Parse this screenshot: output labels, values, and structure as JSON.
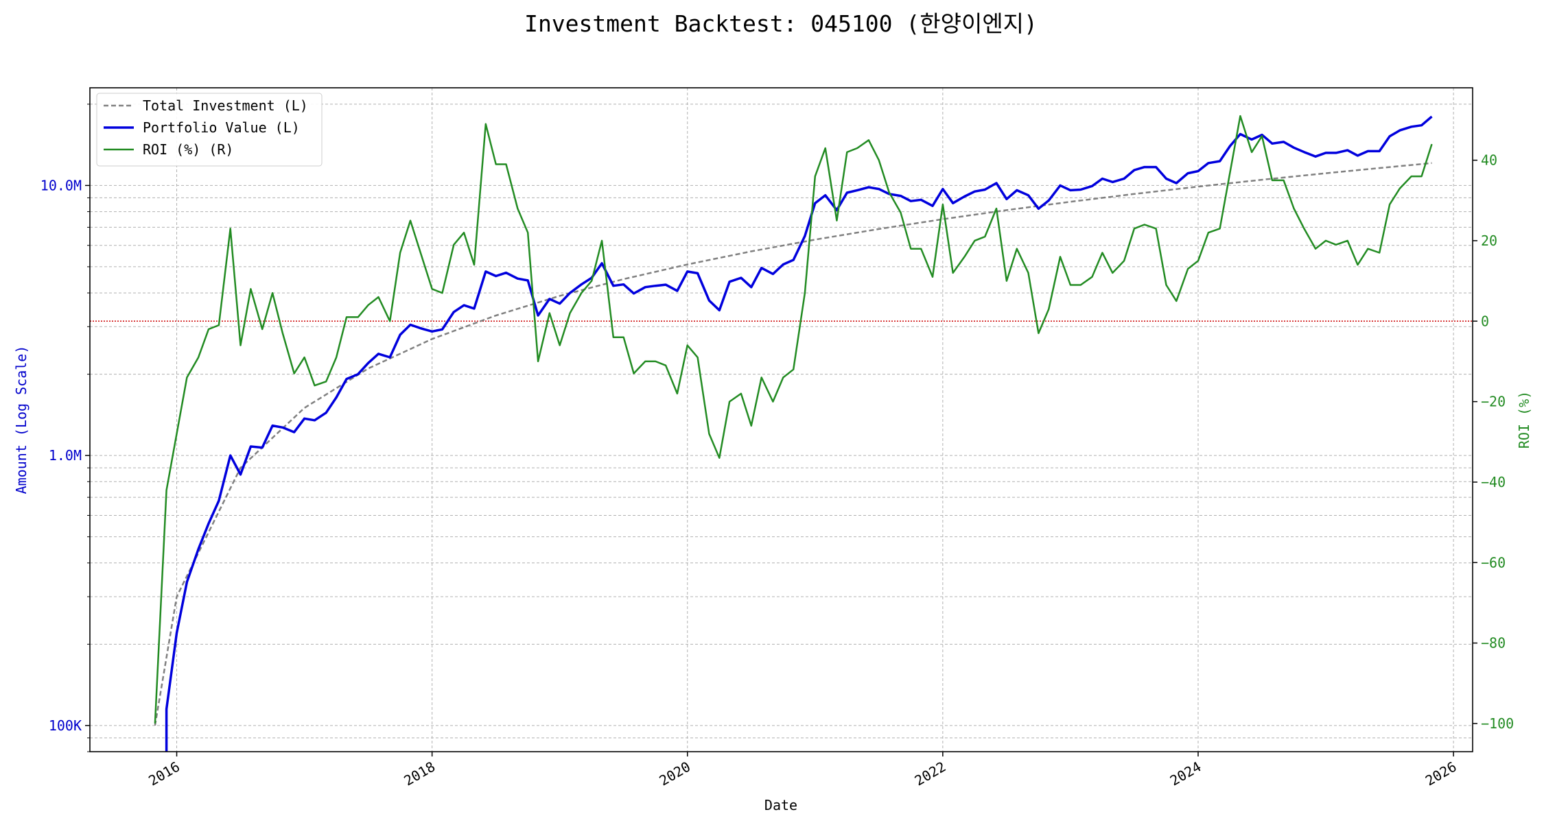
{
  "chart_data": {
    "type": "line",
    "title": "Investment Backtest: 045100 (한양이엔지)",
    "xlabel": "Date",
    "ylabel_left": "Amount (Log Scale)",
    "ylabel_right": "ROI (%)",
    "left_axis": {
      "scale": "log",
      "ylim": [
        80000,
        23000000
      ],
      "ticks": [
        {
          "value": 100000,
          "label": "100K"
        },
        {
          "value": 1000000,
          "label": "1.0M"
        },
        {
          "value": 10000000,
          "label": "10.0M"
        }
      ],
      "color": "#0000cc"
    },
    "right_axis": {
      "scale": "linear",
      "ylim": [
        -107,
        58
      ],
      "ticks": [
        {
          "value": -100,
          "label": "−100"
        },
        {
          "value": -80,
          "label": "−80"
        },
        {
          "value": -60,
          "label": "−60"
        },
        {
          "value": -40,
          "label": "−40"
        },
        {
          "value": -20,
          "label": "−20"
        },
        {
          "value": 0,
          "label": "0"
        },
        {
          "value": 20,
          "label": "20"
        },
        {
          "value": 40,
          "label": "40"
        }
      ],
      "color": "#228b22"
    },
    "x_axis": {
      "xlim": [
        2015.32,
        2026.15
      ],
      "ticks": [
        {
          "value": 2016,
          "label": "2016"
        },
        {
          "value": 2018,
          "label": "2018"
        },
        {
          "value": 2020,
          "label": "2020"
        },
        {
          "value": 2022,
          "label": "2022"
        },
        {
          "value": 2024,
          "label": "2024"
        },
        {
          "value": 2026,
          "label": "2026"
        }
      ]
    },
    "grid": true,
    "legend_position": "top-left",
    "zero_line": {
      "value": 0,
      "axis": "right",
      "color": "#cc0000"
    },
    "series": [
      {
        "name": "Total Investment (L)",
        "axis": "left",
        "color": "#808080",
        "style": "dashed",
        "x": [
          2015.83,
          2016.0,
          2016.5,
          2017.0,
          2017.5,
          2018.0,
          2018.5,
          2019.0,
          2019.5,
          2020.0,
          2020.5,
          2021.0,
          2021.5,
          2022.0,
          2022.5,
          2023.0,
          2023.5,
          2024.0,
          2024.5,
          2025.0,
          2025.5,
          2025.83
        ],
        "values": [
          100000,
          300000,
          900000,
          1500000,
          2100000,
          2700000,
          3300000,
          3900000,
          4500000,
          5100000,
          5700000,
          6300000,
          6900000,
          7500000,
          8100000,
          8700000,
          9300000,
          9900000,
          10500000,
          11100000,
          11700000,
          12100000
        ]
      },
      {
        "name": "Portfolio Value (L)",
        "axis": "left",
        "color": "#0000dd",
        "style": "solid",
        "x": [
          2015.92,
          2016.0,
          2016.08,
          2016.17,
          2016.25,
          2016.33,
          2016.42,
          2016.5,
          2016.58,
          2016.67,
          2016.75,
          2016.83,
          2016.92,
          2017.0,
          2017.08,
          2017.17,
          2017.25,
          2017.33,
          2017.42,
          2017.5,
          2017.58,
          2017.67,
          2017.75,
          2017.83,
          2017.92,
          2018.0,
          2018.08,
          2018.17,
          2018.25,
          2018.33,
          2018.42,
          2018.5,
          2018.58,
          2018.67,
          2018.75,
          2018.83,
          2018.92,
          2019.0,
          2019.08,
          2019.17,
          2019.25,
          2019.33,
          2019.42,
          2019.5,
          2019.58,
          2019.67,
          2019.75,
          2019.83,
          2019.92,
          2020.0,
          2020.08,
          2020.17,
          2020.25,
          2020.33,
          2020.42,
          2020.5,
          2020.58,
          2020.67,
          2020.75,
          2020.83,
          2020.92,
          2021.0,
          2021.08,
          2021.17,
          2021.25,
          2021.33,
          2021.42,
          2021.5,
          2021.58,
          2021.67,
          2021.75,
          2021.83,
          2021.92,
          2022.0,
          2022.08,
          2022.17,
          2022.25,
          2022.33,
          2022.42,
          2022.5,
          2022.58,
          2022.67,
          2022.75,
          2022.83,
          2022.92,
          2023.0,
          2023.08,
          2023.17,
          2023.25,
          2023.33,
          2023.42,
          2023.5,
          2023.58,
          2023.67,
          2023.75,
          2023.83,
          2023.92,
          2024.0,
          2024.08,
          2024.17,
          2024.25,
          2024.33,
          2024.42,
          2024.5,
          2024.58,
          2024.67,
          2024.75,
          2024.83,
          2024.92,
          2025.0,
          2025.08,
          2025.17,
          2025.25,
          2025.33,
          2025.42,
          2025.5,
          2025.58,
          2025.67,
          2025.75,
          2025.83
        ],
        "values": [
          115000,
          220000,
          340000,
          450000,
          560000,
          680000,
          1000000,
          850000,
          1080000,
          1070000,
          1290000,
          1270000,
          1220000,
          1370000,
          1350000,
          1440000,
          1640000,
          1920000,
          2000000,
          2200000,
          2380000,
          2310000,
          2800000,
          3050000,
          2950000,
          2880000,
          2930000,
          3400000,
          3600000,
          3500000,
          4800000,
          4620000,
          4750000,
          4520000,
          4450000,
          3300000,
          3800000,
          3650000,
          4000000,
          4300000,
          4550000,
          5150000,
          4250000,
          4300000,
          3980000,
          4200000,
          4250000,
          4290000,
          4070000,
          4800000,
          4730000,
          3750000,
          3450000,
          4400000,
          4550000,
          4200000,
          4950000,
          4700000,
          5100000,
          5300000,
          6500000,
          8600000,
          9200000,
          8100000,
          9400000,
          9600000,
          9850000,
          9700000,
          9300000,
          9150000,
          8750000,
          8850000,
          8400000,
          9700000,
          8600000,
          9100000,
          9500000,
          9650000,
          10200000,
          8900000,
          9600000,
          9200000,
          8200000,
          8800000,
          10000000,
          9600000,
          9650000,
          9950000,
          10600000,
          10300000,
          10600000,
          11400000,
          11700000,
          11700000,
          10600000,
          10200000,
          11100000,
          11300000,
          12100000,
          12300000,
          14000000,
          15500000,
          14800000,
          15400000,
          14300000,
          14500000,
          13800000,
          13300000,
          12800000,
          13200000,
          13200000,
          13500000,
          12900000,
          13400000,
          13400000,
          15200000,
          16000000,
          16500000,
          16700000,
          18000000
        ]
      },
      {
        "name": "ROI (%) (R)",
        "axis": "right",
        "color": "#228b22",
        "style": "solid",
        "x": [
          2015.83,
          2015.92,
          2016.0,
          2016.08,
          2016.17,
          2016.25,
          2016.33,
          2016.42,
          2016.5,
          2016.58,
          2016.67,
          2016.75,
          2016.83,
          2016.92,
          2017.0,
          2017.08,
          2017.17,
          2017.25,
          2017.33,
          2017.42,
          2017.5,
          2017.58,
          2017.67,
          2017.75,
          2017.83,
          2017.92,
          2018.0,
          2018.08,
          2018.17,
          2018.25,
          2018.33,
          2018.42,
          2018.5,
          2018.58,
          2018.67,
          2018.75,
          2018.83,
          2018.92,
          2019.0,
          2019.08,
          2019.17,
          2019.25,
          2019.33,
          2019.42,
          2019.5,
          2019.58,
          2019.67,
          2019.75,
          2019.83,
          2019.92,
          2020.0,
          2020.08,
          2020.17,
          2020.25,
          2020.33,
          2020.42,
          2020.5,
          2020.58,
          2020.67,
          2020.75,
          2020.83,
          2020.92,
          2021.0,
          2021.08,
          2021.17,
          2021.25,
          2021.33,
          2021.42,
          2021.5,
          2021.58,
          2021.67,
          2021.75,
          2021.83,
          2021.92,
          2022.0,
          2022.08,
          2022.17,
          2022.25,
          2022.33,
          2022.42,
          2022.5,
          2022.58,
          2022.67,
          2022.75,
          2022.83,
          2022.92,
          2023.0,
          2023.08,
          2023.17,
          2023.25,
          2023.33,
          2023.42,
          2023.5,
          2023.58,
          2023.67,
          2023.75,
          2023.83,
          2023.92,
          2024.0,
          2024.08,
          2024.17,
          2024.25,
          2024.33,
          2024.42,
          2024.5,
          2024.58,
          2024.67,
          2024.75,
          2024.83,
          2024.92,
          2025.0,
          2025.08,
          2025.17,
          2025.25,
          2025.33,
          2025.42,
          2025.5,
          2025.58,
          2025.67,
          2025.75,
          2025.83
        ],
        "values": [
          -100,
          -42,
          -28,
          -14,
          -9,
          -2,
          -1,
          23,
          -6,
          8,
          -2,
          7,
          -3,
          -13,
          -9,
          -16,
          -15,
          -9,
          1,
          1,
          4,
          6,
          0,
          17,
          25,
          16,
          8,
          7,
          19,
          22,
          14,
          49,
          39,
          39,
          28,
          22,
          -10,
          2,
          -6,
          2,
          7,
          10,
          20,
          -4,
          -4,
          -13,
          -10,
          -10,
          -11,
          -18,
          -6,
          -9,
          -28,
          -34,
          -20,
          -18,
          -26,
          -14,
          -20,
          -14,
          -12,
          7,
          36,
          43,
          25,
          42,
          43,
          45,
          40,
          32,
          27,
          18,
          18,
          11,
          29,
          12,
          16,
          20,
          21,
          28,
          10,
          18,
          12,
          -3,
          3,
          16,
          9,
          9,
          11,
          17,
          12,
          15,
          23,
          24,
          23,
          9,
          5,
          13,
          15,
          22,
          23,
          37,
          51,
          42,
          46,
          35,
          35,
          28,
          23,
          18,
          20,
          19,
          20,
          14,
          18,
          17,
          29,
          33,
          36,
          36,
          44
        ]
      }
    ]
  }
}
